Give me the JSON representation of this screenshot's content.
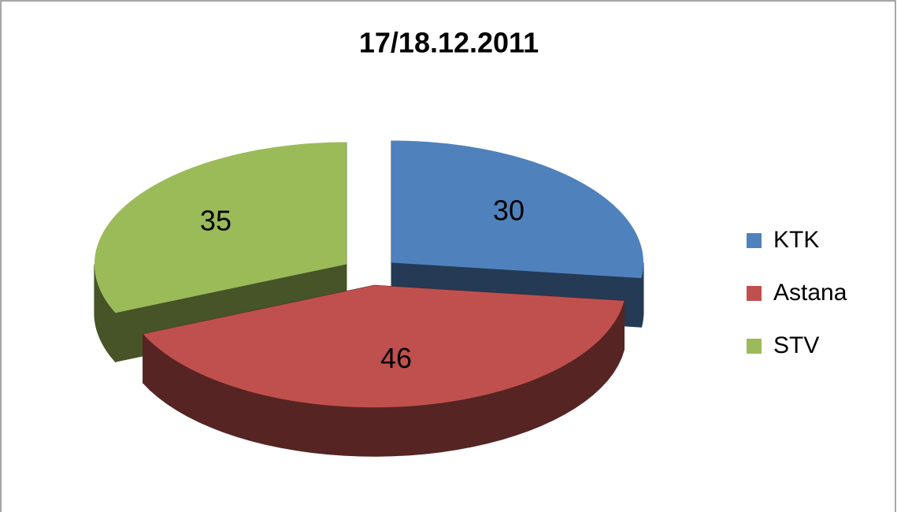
{
  "chart_data": {
    "type": "pie",
    "title": "17/18.12.2011",
    "categories": [
      "KTK",
      "Astana",
      "STV"
    ],
    "values": [
      30,
      46,
      35
    ],
    "colors": [
      "#4f81bd",
      "#c0504d",
      "#9bbb59"
    ],
    "legend": "right"
  }
}
